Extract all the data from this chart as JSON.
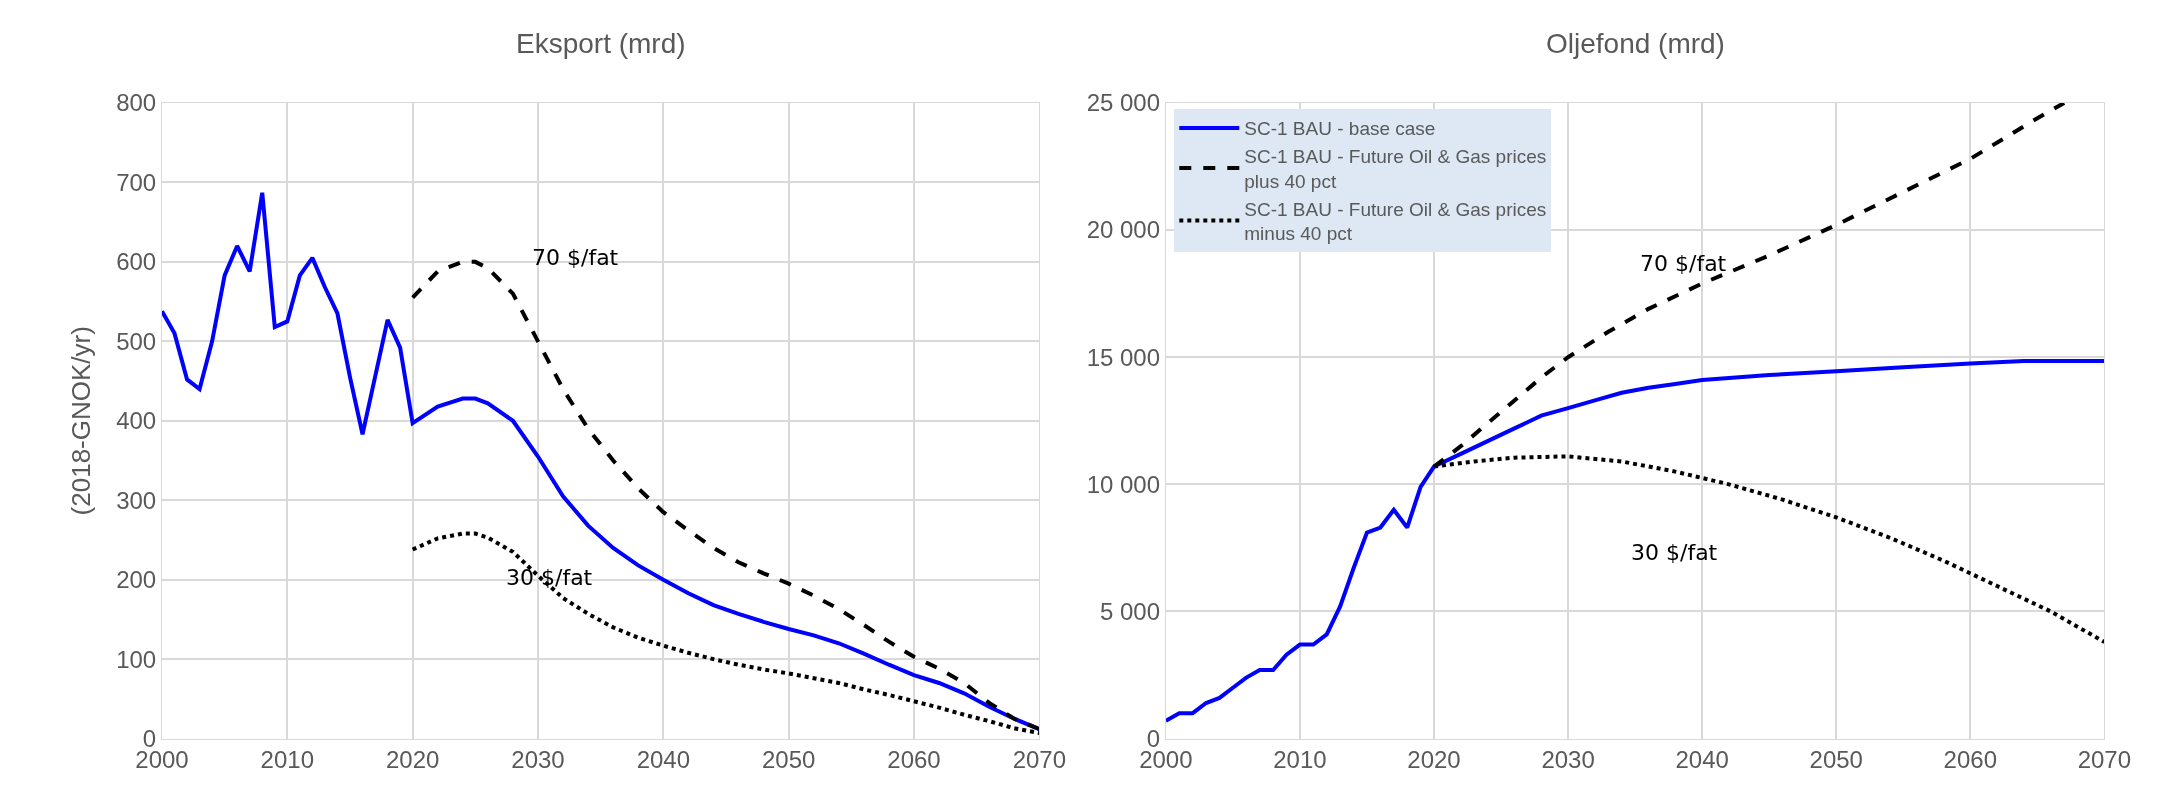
{
  "chart_data": [
    {
      "type": "line",
      "title": "Eksport (mrd)",
      "ylabel": "(2018-GNOK/yr)",
      "xlim": [
        2000,
        2070
      ],
      "xticks": [
        2000,
        2010,
        2020,
        2030,
        2040,
        2050,
        2060,
        2070
      ],
      "ylim": [
        0,
        800
      ],
      "yticks": [
        0,
        100,
        200,
        300,
        400,
        500,
        600,
        700,
        800
      ],
      "grid": true,
      "legend": false,
      "marker": "none",
      "series": [
        {
          "color": "#0000ff",
          "line_style": "solid",
          "x": [
            2000,
            2001,
            2002,
            2003,
            2004,
            2005,
            2006,
            2007,
            2008,
            2009,
            2010,
            2011,
            2012,
            2013,
            2014,
            2015,
            2016,
            2017,
            2018,
            2019,
            2020,
            2022,
            2024,
            2025,
            2026,
            2028,
            2030,
            2032,
            2034,
            2036,
            2038,
            2040,
            2042,
            2044,
            2046,
            2048,
            2050,
            2052,
            2054,
            2056,
            2058,
            2060,
            2062,
            2064,
            2066,
            2068,
            2070
          ],
          "values": [
            538,
            510,
            452,
            440,
            500,
            583,
            620,
            588,
            687,
            518,
            525,
            583,
            605,
            568,
            535,
            455,
            383,
            455,
            527,
            492,
            397,
            418,
            428,
            428,
            422,
            400,
            355,
            305,
            268,
            240,
            218,
            200,
            183,
            168,
            157,
            147,
            138,
            130,
            120,
            107,
            93,
            80,
            70,
            57,
            40,
            25,
            12
          ]
        },
        {
          "color": "#000000",
          "line_style": "dashed",
          "x": [
            2020,
            2022,
            2024,
            2025,
            2026,
            2028,
            2030,
            2032,
            2034,
            2036,
            2038,
            2040,
            2042,
            2044,
            2046,
            2048,
            2050,
            2052,
            2054,
            2056,
            2058,
            2060,
            2062,
            2064,
            2066,
            2068,
            2070
          ],
          "values": [
            555,
            588,
            600,
            600,
            592,
            560,
            500,
            440,
            390,
            350,
            315,
            285,
            262,
            240,
            222,
            208,
            195,
            180,
            163,
            143,
            122,
            103,
            88,
            70,
            45,
            25,
            12
          ]
        },
        {
          "color": "#000000",
          "line_style": "dotted",
          "x": [
            2020,
            2022,
            2024,
            2025,
            2026,
            2028,
            2030,
            2032,
            2034,
            2036,
            2038,
            2040,
            2042,
            2044,
            2046,
            2048,
            2050,
            2052,
            2054,
            2056,
            2058,
            2060,
            2062,
            2064,
            2066,
            2068,
            2070
          ],
          "values": [
            238,
            252,
            258,
            258,
            253,
            235,
            205,
            177,
            157,
            140,
            127,
            117,
            108,
            100,
            93,
            87,
            82,
            76,
            70,
            62,
            55,
            47,
            39,
            30,
            22,
            13,
            7
          ]
        }
      ],
      "annotations": [
        "70 $/fat",
        "30 $/fat"
      ]
    },
    {
      "type": "line",
      "title": "Oljefond (mrd)",
      "xlim": [
        2000,
        2070
      ],
      "xticks": [
        2000,
        2010,
        2020,
        2030,
        2040,
        2050,
        2060,
        2070
      ],
      "ylim": [
        0,
        25000
      ],
      "yticks": [
        {
          "value": 0,
          "label": "0"
        },
        {
          "value": 5000,
          "label": "5 000"
        },
        {
          "value": 10000,
          "label": "10 000"
        },
        {
          "value": 15000,
          "label": "15 000"
        },
        {
          "value": 20000,
          "label": "20 000"
        },
        {
          "value": 25000,
          "label": "25 000"
        }
      ],
      "grid": true,
      "legend": "top left",
      "marker": "none",
      "series": [
        {
          "name": "SC-1 BAU - base case",
          "color": "#0000ff",
          "line_style": "solid",
          "x": [
            2000,
            2001,
            2002,
            2003,
            2004,
            2005,
            2006,
            2007,
            2008,
            2009,
            2010,
            2011,
            2012,
            2013,
            2014,
            2015,
            2016,
            2017,
            2018,
            2019,
            2020,
            2022,
            2024,
            2026,
            2028,
            2030,
            2032,
            2034,
            2036,
            2038,
            2040,
            2045,
            2050,
            2055,
            2060,
            2064,
            2070
          ],
          "values": [
            700,
            1000,
            1000,
            1400,
            1600,
            2000,
            2400,
            2700,
            2700,
            3300,
            3700,
            3700,
            4100,
            5200,
            6700,
            8100,
            8300,
            9000,
            8300,
            9900,
            10700,
            11200,
            11700,
            12200,
            12700,
            13000,
            13300,
            13600,
            13800,
            13950,
            14100,
            14300,
            14450,
            14600,
            14750,
            14850,
            14850
          ]
        },
        {
          "name": "SC-1 BAU - Future Oil & Gas prices plus 40 pct",
          "color": "#000000",
          "line_style": "dashed",
          "x": [
            2020,
            2022,
            2024,
            2026,
            2028,
            2030,
            2033,
            2036,
            2040,
            2045,
            2050,
            2055,
            2060,
            2065,
            2067
          ],
          "values": [
            10700,
            11500,
            12400,
            13300,
            14200,
            15000,
            16000,
            16900,
            17900,
            19000,
            20200,
            21500,
            22800,
            24400,
            25000
          ]
        },
        {
          "name": "SC-1 BAU - Future Oil & Gas prices minus 40 pct",
          "color": "#000000",
          "line_style": "dotted",
          "x": [
            2020,
            2023,
            2026,
            2030,
            2034,
            2038,
            2042,
            2046,
            2050,
            2054,
            2058,
            2062,
            2066,
            2070
          ],
          "values": [
            10700,
            10900,
            11050,
            11100,
            10900,
            10500,
            10000,
            9400,
            8700,
            7900,
            7000,
            6000,
            5000,
            3800
          ]
        }
      ],
      "annotations": [
        "70 $/fat",
        "30 $/fat"
      ]
    }
  ]
}
